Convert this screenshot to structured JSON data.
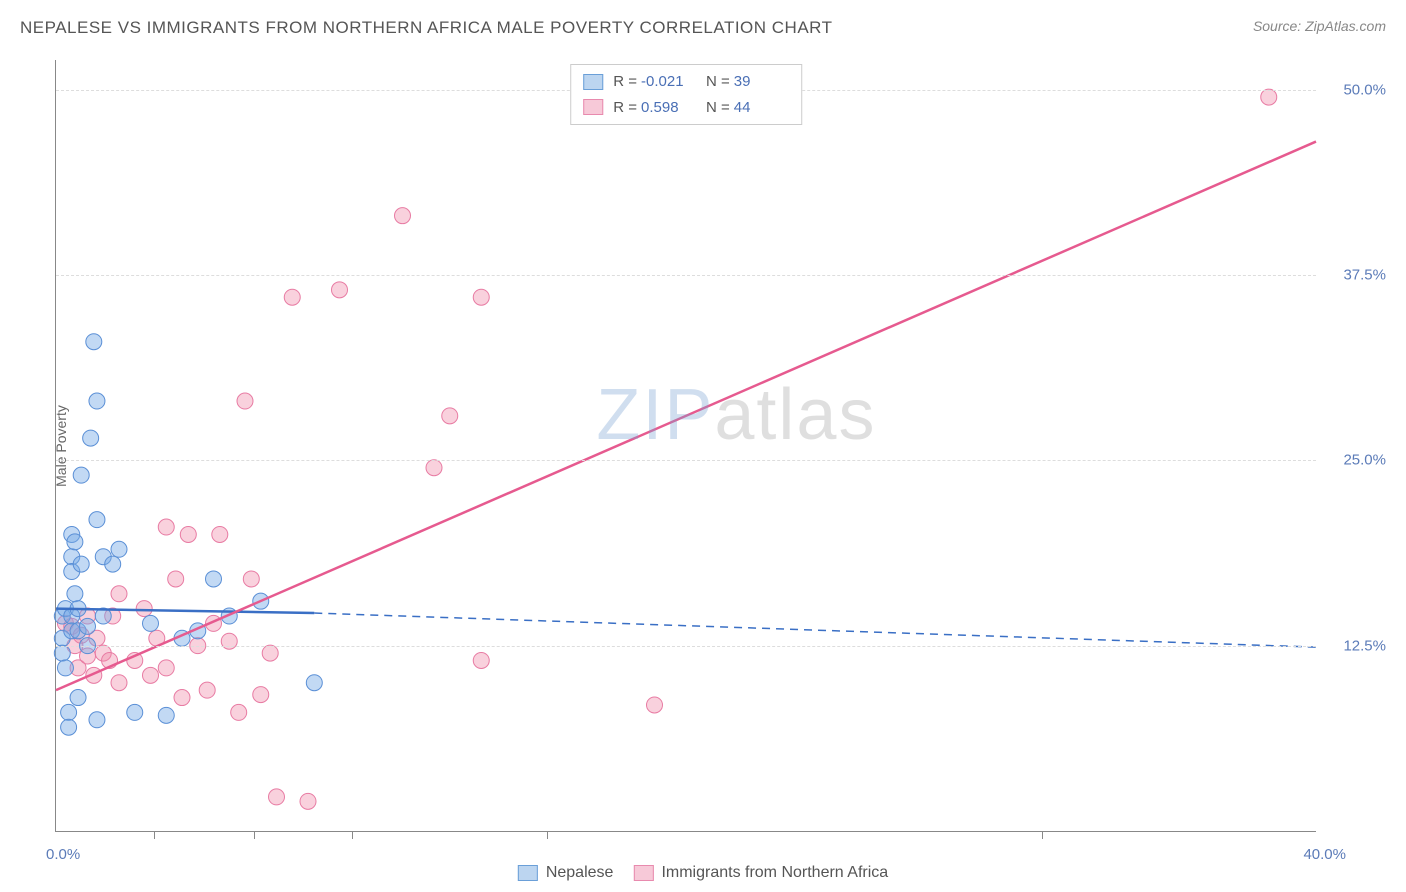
{
  "header": {
    "title": "NEPALESE VS IMMIGRANTS FROM NORTHERN AFRICA MALE POVERTY CORRELATION CHART",
    "source_label": "Source:",
    "source_name": "ZipAtlas.com"
  },
  "watermark": {
    "part1": "ZIP",
    "part2": "atlas"
  },
  "chart": {
    "type": "scatter-correlation",
    "ylabel": "Male Poverty",
    "x_range": [
      0,
      40
    ],
    "y_range": [
      0,
      52
    ],
    "x_ticks_pct": [
      0,
      3.1,
      6.3,
      9.4,
      15.6,
      31.3,
      40
    ],
    "x_tick_labels": {
      "left": "0.0%",
      "right": "40.0%"
    },
    "y_gridlines": [
      12.5,
      25.0,
      37.5,
      50.0
    ],
    "y_tick_labels": [
      "12.5%",
      "25.0%",
      "37.5%",
      "50.0%"
    ],
    "background": "#ffffff",
    "grid_color": "#dddddd",
    "axis_color": "#888888"
  },
  "series": {
    "a": {
      "name": "Nepalese",
      "color_fill": "rgba(120,170,230,0.45)",
      "color_stroke": "#5a8fd6",
      "swatch_fill": "#bcd5f0",
      "swatch_border": "#6a9fd8",
      "R": "-0.021",
      "N": "39",
      "marker_r": 8,
      "regression": {
        "solid": {
          "x1": 0,
          "y1": 15.0,
          "x2": 8.2,
          "y2": 14.7
        },
        "dashed": {
          "x1": 8.2,
          "y1": 14.7,
          "x2": 40,
          "y2": 12.4
        },
        "color": "#3a6fc5",
        "width": 2.5
      },
      "points": [
        [
          0.2,
          14.5
        ],
        [
          0.2,
          13.0
        ],
        [
          0.2,
          12.0
        ],
        [
          0.3,
          15.0
        ],
        [
          0.3,
          11.0
        ],
        [
          0.4,
          8.0
        ],
        [
          0.4,
          7.0
        ],
        [
          0.5,
          20.0
        ],
        [
          0.5,
          18.5
        ],
        [
          0.5,
          17.5
        ],
        [
          0.5,
          14.5
        ],
        [
          0.5,
          13.5
        ],
        [
          0.6,
          19.5
        ],
        [
          0.6,
          16.0
        ],
        [
          0.7,
          15.0
        ],
        [
          0.7,
          13.5
        ],
        [
          0.7,
          9.0
        ],
        [
          0.8,
          24.0
        ],
        [
          0.8,
          18.0
        ],
        [
          1.0,
          13.8
        ],
        [
          1.0,
          12.5
        ],
        [
          1.1,
          26.5
        ],
        [
          1.2,
          33.0
        ],
        [
          1.3,
          29.0
        ],
        [
          1.3,
          21.0
        ],
        [
          1.3,
          7.5
        ],
        [
          1.5,
          18.5
        ],
        [
          1.5,
          14.5
        ],
        [
          1.8,
          18.0
        ],
        [
          2.0,
          19.0
        ],
        [
          2.5,
          8.0
        ],
        [
          3.0,
          14.0
        ],
        [
          3.5,
          7.8
        ],
        [
          4.0,
          13.0
        ],
        [
          4.5,
          13.5
        ],
        [
          5.0,
          17.0
        ],
        [
          5.5,
          14.5
        ],
        [
          6.5,
          15.5
        ],
        [
          8.2,
          10.0
        ]
      ]
    },
    "b": {
      "name": "Immigrants from Northern Africa",
      "color_fill": "rgba(240,140,170,0.4)",
      "color_stroke": "#e87ba3",
      "swatch_fill": "#f7c9d8",
      "swatch_border": "#e88aae",
      "R": "0.598",
      "N": "44",
      "marker_r": 8,
      "regression": {
        "solid": {
          "x1": 0,
          "y1": 9.5,
          "x2": 40,
          "y2": 46.5
        },
        "color": "#e65a8f",
        "width": 2.5
      },
      "points": [
        [
          0.3,
          14.0
        ],
        [
          0.5,
          13.8
        ],
        [
          0.6,
          12.5
        ],
        [
          0.7,
          11.0
        ],
        [
          0.8,
          13.2
        ],
        [
          1.0,
          14.5
        ],
        [
          1.0,
          11.8
        ],
        [
          1.2,
          10.5
        ],
        [
          1.3,
          13.0
        ],
        [
          1.5,
          12.0
        ],
        [
          1.7,
          11.5
        ],
        [
          1.8,
          14.5
        ],
        [
          2.0,
          10.0
        ],
        [
          2.0,
          16.0
        ],
        [
          2.5,
          11.5
        ],
        [
          2.8,
          15.0
        ],
        [
          3.0,
          10.5
        ],
        [
          3.2,
          13.0
        ],
        [
          3.5,
          20.5
        ],
        [
          3.5,
          11.0
        ],
        [
          3.8,
          17.0
        ],
        [
          4.0,
          9.0
        ],
        [
          4.2,
          20.0
        ],
        [
          4.5,
          12.5
        ],
        [
          4.8,
          9.5
        ],
        [
          5.0,
          14.0
        ],
        [
          5.2,
          20.0
        ],
        [
          5.5,
          12.8
        ],
        [
          5.8,
          8.0
        ],
        [
          6.0,
          29.0
        ],
        [
          6.2,
          17.0
        ],
        [
          6.5,
          9.2
        ],
        [
          6.8,
          12.0
        ],
        [
          7.0,
          2.3
        ],
        [
          7.5,
          36.0
        ],
        [
          8.0,
          2.0
        ],
        [
          9.0,
          36.5
        ],
        [
          11.0,
          41.5
        ],
        [
          12.0,
          24.5
        ],
        [
          12.5,
          28.0
        ],
        [
          13.5,
          36.0
        ],
        [
          13.5,
          11.5
        ],
        [
          19.0,
          8.5
        ],
        [
          38.5,
          49.5
        ]
      ]
    }
  },
  "legend_top": {
    "R_label": "R =",
    "N_label": "N ="
  },
  "legend_bottom": {
    "a_label": "Nepalese",
    "b_label": "Immigrants from Northern Africa"
  }
}
